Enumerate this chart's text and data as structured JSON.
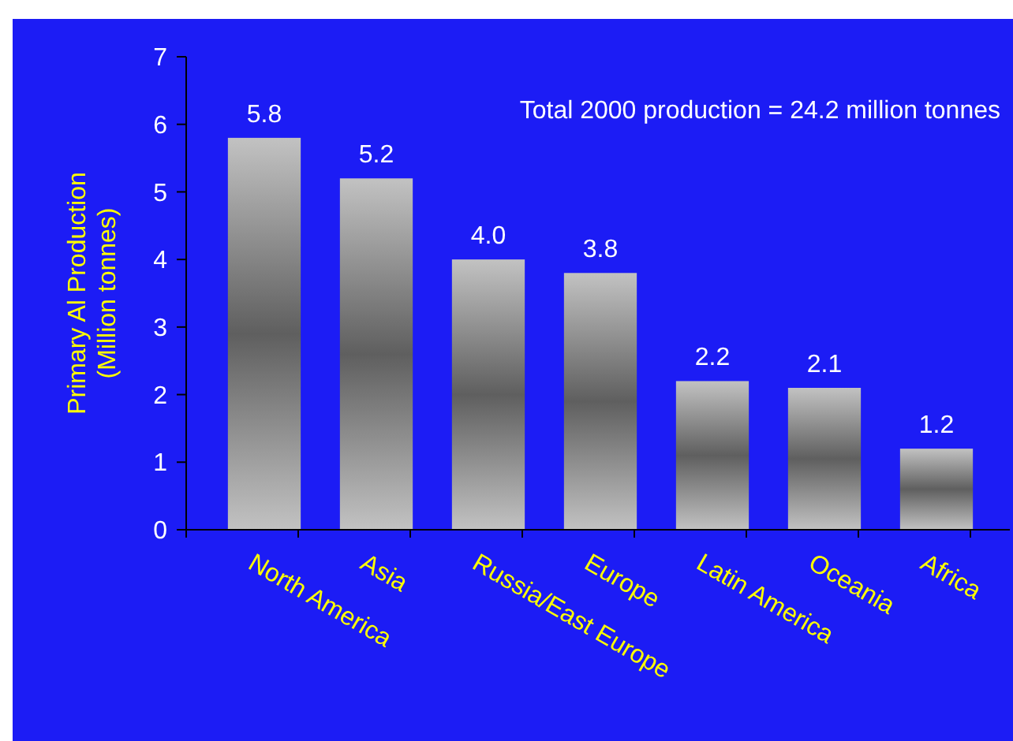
{
  "chart_data": {
    "type": "bar",
    "ylabel": "Primary Al Production\n(Million tonnes)",
    "categories": [
      "North America",
      "Asia",
      "Russia/East Europe",
      "Europe",
      "Latin America",
      "Oceania",
      "Africa"
    ],
    "values": [
      5.8,
      5.2,
      4.0,
      3.8,
      2.2,
      2.1,
      1.2
    ],
    "value_labels": [
      "5.8",
      "5.2",
      "4.0",
      "3.8",
      "2.2",
      "2.1",
      "1.2"
    ],
    "color": "#a8a8a8",
    "ylim": [
      0,
      7
    ],
    "yticks": [
      0,
      1,
      2,
      3,
      4,
      5,
      6,
      7
    ],
    "grid": false,
    "annotations": [
      "Total 2000 production = 24.2 million tonnes"
    ]
  }
}
